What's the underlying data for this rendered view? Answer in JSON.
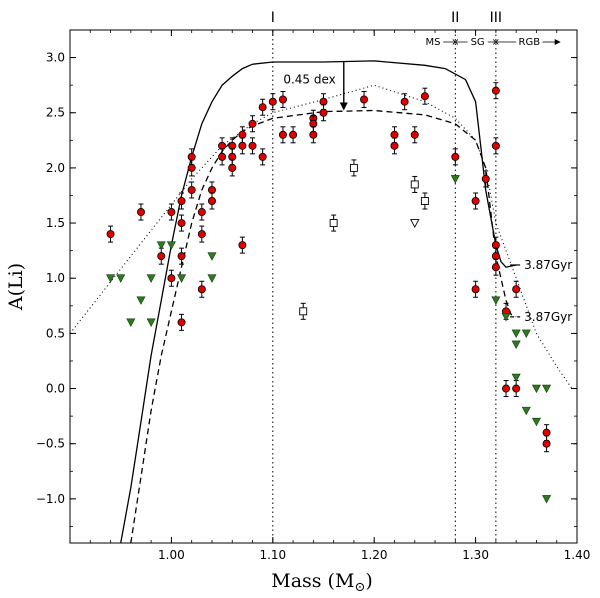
{
  "chart_data": {
    "type": "scatter",
    "xlabel": "Mass (M",
    "xlabel_sub": "⊙",
    "xlabel_close": ")",
    "ylabel": "A(Li)",
    "xlim": [
      0.9,
      1.4
    ],
    "ylim": [
      -1.4,
      3.25
    ],
    "x_ticks": [
      1.0,
      1.1,
      1.2,
      1.3,
      1.4
    ],
    "x_tick_labels": [
      "1.00",
      "1.10",
      "1.20",
      "1.30",
      "1.40"
    ],
    "y_ticks": [
      -1.0,
      -0.5,
      0.0,
      0.5,
      1.0,
      1.5,
      2.0,
      2.5,
      3.0
    ],
    "y_tick_labels": [
      "−1.0",
      "−0.5",
      "0.0",
      "0.5",
      "1.0",
      "1.5",
      "2.0",
      "2.5",
      "3.0"
    ],
    "grid": false,
    "regions": [
      {
        "x": 1.1,
        "label": "I"
      },
      {
        "x": 1.28,
        "label": "II"
      },
      {
        "x": 1.32,
        "label": "III"
      }
    ],
    "phase_labels": {
      "ms": "MS",
      "sg": "SG",
      "rgb": "RGB"
    },
    "annotations": {
      "dex": {
        "text": "0.45 dex",
        "x": 1.17,
        "y_from": 2.96,
        "y_to": 2.52
      },
      "age_solid": {
        "text": "3.87Gyr",
        "x": 1.34,
        "y": 1.12
      },
      "age_dashed": {
        "text": "3.87Gyr",
        "x": 1.34,
        "y": 0.65
      }
    },
    "series": [
      {
        "kind": "detection",
        "color": "#e00000",
        "points": [
          {
            "x": 0.94,
            "y": 1.4
          },
          {
            "x": 0.97,
            "y": 1.6
          },
          {
            "x": 0.99,
            "y": 1.2
          },
          {
            "x": 1.0,
            "y": 1.6
          },
          {
            "x": 1.0,
            "y": 1.0
          },
          {
            "x": 1.01,
            "y": 1.7
          },
          {
            "x": 1.01,
            "y": 1.5
          },
          {
            "x": 1.01,
            "y": 1.2
          },
          {
            "x": 1.01,
            "y": 0.6
          },
          {
            "x": 1.02,
            "y": 2.1
          },
          {
            "x": 1.02,
            "y": 2.0
          },
          {
            "x": 1.02,
            "y": 1.8
          },
          {
            "x": 1.03,
            "y": 1.6
          },
          {
            "x": 1.03,
            "y": 1.4
          },
          {
            "x": 1.03,
            "y": 0.9
          },
          {
            "x": 1.04,
            "y": 1.8
          },
          {
            "x": 1.04,
            "y": 1.7
          },
          {
            "x": 1.05,
            "y": 2.2
          },
          {
            "x": 1.05,
            "y": 2.1
          },
          {
            "x": 1.06,
            "y": 2.2
          },
          {
            "x": 1.06,
            "y": 2.1
          },
          {
            "x": 1.06,
            "y": 2.0
          },
          {
            "x": 1.07,
            "y": 2.3
          },
          {
            "x": 1.07,
            "y": 2.2
          },
          {
            "x": 1.07,
            "y": 1.3
          },
          {
            "x": 1.08,
            "y": 2.4
          },
          {
            "x": 1.08,
            "y": 2.2
          },
          {
            "x": 1.09,
            "y": 2.55
          },
          {
            "x": 1.09,
            "y": 2.1
          },
          {
            "x": 1.1,
            "y": 2.6
          },
          {
            "x": 1.11,
            "y": 2.62
          },
          {
            "x": 1.11,
            "y": 2.3
          },
          {
            "x": 1.12,
            "y": 2.3
          },
          {
            "x": 1.14,
            "y": 2.45
          },
          {
            "x": 1.14,
            "y": 2.4
          },
          {
            "x": 1.14,
            "y": 2.3
          },
          {
            "x": 1.15,
            "y": 2.6
          },
          {
            "x": 1.15,
            "y": 2.5
          },
          {
            "x": 1.19,
            "y": 2.62
          },
          {
            "x": 1.22,
            "y": 2.3
          },
          {
            "x": 1.22,
            "y": 2.2
          },
          {
            "x": 1.23,
            "y": 2.6
          },
          {
            "x": 1.24,
            "y": 2.3
          },
          {
            "x": 1.25,
            "y": 2.65
          },
          {
            "x": 1.28,
            "y": 2.1
          },
          {
            "x": 1.3,
            "y": 1.7
          },
          {
            "x": 1.3,
            "y": 0.9
          },
          {
            "x": 1.31,
            "y": 1.9
          },
          {
            "x": 1.32,
            "y": 2.7
          },
          {
            "x": 1.32,
            "y": 2.2
          },
          {
            "x": 1.32,
            "y": 1.3
          },
          {
            "x": 1.32,
            "y": 1.2
          },
          {
            "x": 1.32,
            "y": 1.1
          },
          {
            "x": 1.33,
            "y": 0.7
          },
          {
            "x": 1.33,
            "y": 0.0
          },
          {
            "x": 1.34,
            "y": 0.9
          },
          {
            "x": 1.34,
            "y": 0.0
          },
          {
            "x": 1.37,
            "y": -0.4
          },
          {
            "x": 1.37,
            "y": -0.5
          }
        ]
      },
      {
        "kind": "upper-limit",
        "color": "#2d7a1f",
        "points": [
          {
            "x": 0.94,
            "y": 1.0
          },
          {
            "x": 0.95,
            "y": 1.0
          },
          {
            "x": 0.96,
            "y": 0.6
          },
          {
            "x": 0.97,
            "y": 0.8
          },
          {
            "x": 0.98,
            "y": 1.0
          },
          {
            "x": 0.98,
            "y": 0.6
          },
          {
            "x": 0.99,
            "y": 1.3
          },
          {
            "x": 1.0,
            "y": 1.3
          },
          {
            "x": 1.01,
            "y": 1.0
          },
          {
            "x": 1.04,
            "y": 1.2
          },
          {
            "x": 1.04,
            "y": 1.0
          },
          {
            "x": 1.28,
            "y": 1.9
          },
          {
            "x": 1.32,
            "y": 0.8
          },
          {
            "x": 1.33,
            "y": 0.65
          },
          {
            "x": 1.34,
            "y": 0.5
          },
          {
            "x": 1.34,
            "y": 0.4
          },
          {
            "x": 1.35,
            "y": 0.5
          },
          {
            "x": 1.34,
            "y": 0.1
          },
          {
            "x": 1.35,
            "y": -0.2
          },
          {
            "x": 1.36,
            "y": 0.0
          },
          {
            "x": 1.37,
            "y": 0.0
          },
          {
            "x": 1.36,
            "y": -0.3
          },
          {
            "x": 1.37,
            "y": -1.0
          }
        ]
      },
      {
        "kind": "open-square",
        "color": "#ffffff",
        "points": [
          {
            "x": 1.13,
            "y": 0.7
          },
          {
            "x": 1.16,
            "y": 1.5
          },
          {
            "x": 1.18,
            "y": 2.0
          },
          {
            "x": 1.24,
            "y": 1.85
          },
          {
            "x": 1.25,
            "y": 1.7
          }
        ]
      },
      {
        "kind": "open-triangle",
        "color": "#ffffff",
        "points": [
          {
            "x": 1.24,
            "y": 1.5
          }
        ]
      }
    ],
    "models": [
      {
        "style": "solid",
        "points": [
          [
            0.95,
            -1.4
          ],
          [
            0.96,
            -0.9
          ],
          [
            0.97,
            -0.3
          ],
          [
            0.98,
            0.3
          ],
          [
            0.99,
            0.8
          ],
          [
            1.0,
            1.3
          ],
          [
            1.01,
            1.75
          ],
          [
            1.02,
            2.1
          ],
          [
            1.03,
            2.4
          ],
          [
            1.04,
            2.6
          ],
          [
            1.05,
            2.75
          ],
          [
            1.06,
            2.83
          ],
          [
            1.07,
            2.9
          ],
          [
            1.08,
            2.94
          ],
          [
            1.1,
            2.96
          ],
          [
            1.15,
            2.96
          ],
          [
            1.2,
            2.97
          ],
          [
            1.25,
            2.93
          ],
          [
            1.27,
            2.9
          ],
          [
            1.29,
            2.8
          ],
          [
            1.3,
            2.6
          ],
          [
            1.305,
            2.2
          ],
          [
            1.31,
            1.8
          ],
          [
            1.32,
            1.3
          ],
          [
            1.325,
            1.15
          ],
          [
            1.33,
            1.1
          ],
          [
            1.34,
            1.12
          ]
        ]
      },
      {
        "style": "dashed",
        "points": [
          [
            0.96,
            -1.4
          ],
          [
            0.97,
            -0.8
          ],
          [
            0.98,
            -0.2
          ],
          [
            0.99,
            0.3
          ],
          [
            1.0,
            0.7
          ],
          [
            1.01,
            1.1
          ],
          [
            1.02,
            1.5
          ],
          [
            1.03,
            1.8
          ],
          [
            1.04,
            2.0
          ],
          [
            1.05,
            2.15
          ],
          [
            1.06,
            2.25
          ],
          [
            1.07,
            2.33
          ],
          [
            1.08,
            2.38
          ],
          [
            1.1,
            2.45
          ],
          [
            1.15,
            2.51
          ],
          [
            1.2,
            2.52
          ],
          [
            1.25,
            2.48
          ],
          [
            1.28,
            2.4
          ],
          [
            1.3,
            2.25
          ],
          [
            1.31,
            2.0
          ],
          [
            1.315,
            1.6
          ],
          [
            1.32,
            1.2
          ],
          [
            1.33,
            0.8
          ],
          [
            1.335,
            0.67
          ],
          [
            1.34,
            0.65
          ]
        ]
      },
      {
        "style": "dotted",
        "points": [
          [
            0.9,
            0.5
          ],
          [
            0.93,
            0.85
          ],
          [
            0.96,
            1.2
          ],
          [
            0.99,
            1.55
          ],
          [
            1.02,
            1.9
          ],
          [
            1.05,
            2.2
          ],
          [
            1.08,
            2.4
          ],
          [
            1.1,
            2.5
          ],
          [
            1.15,
            2.62
          ],
          [
            1.2,
            2.75
          ],
          [
            1.25,
            2.6
          ],
          [
            1.28,
            2.45
          ],
          [
            1.3,
            2.25
          ],
          [
            1.31,
            2.0
          ],
          [
            1.32,
            1.5
          ],
          [
            1.34,
            1.0
          ],
          [
            1.36,
            0.5
          ],
          [
            1.38,
            0.2
          ],
          [
            1.395,
            0.0
          ]
        ]
      }
    ]
  }
}
